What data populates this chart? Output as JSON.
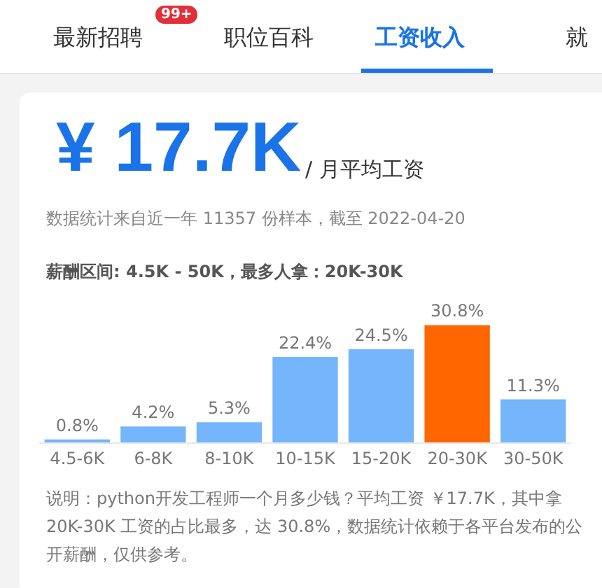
{
  "chart_data": {
    "type": "bar",
    "title": "¥ 17.7K",
    "subtitle": "/ 月平均工资",
    "annotations": [
      "最新招聘",
      "99+",
      "职位百科",
      "工资收入",
      "就",
      "数据统计来自近一年 11357 份样本，截至 2022-04-20",
      "薪酬区间: 4.5K - 50K，最多人拿：20K-30K",
      "说明：python开发工程师一个月多少钱？平均工资 ￥17.7K，其中拿 20K-30K 工资的占比最多，达 30.8%，数据统计依赖于各平台发布的公开薪酬，仅供参考。"
    ],
    "categories": [
      "4.5-6K",
      "6-8K",
      "8-10K",
      "10-15K",
      "15-20K",
      "20-30K",
      "30-50K"
    ],
    "values": [
      0.8,
      4.2,
      5.3,
      22.4,
      24.5,
      30.8,
      11.3
    ],
    "value_labels": [
      "0.8%",
      "4.2%",
      "5.3%",
      "22.4%",
      "24.5%",
      "30.8%",
      "11.3%"
    ],
    "colors": [
      "#74b5fb",
      "#74b5fb",
      "#74b5fb",
      "#74b5fb",
      "#74b5fb",
      "#ff6600",
      "#74b5fb"
    ]
  }
}
